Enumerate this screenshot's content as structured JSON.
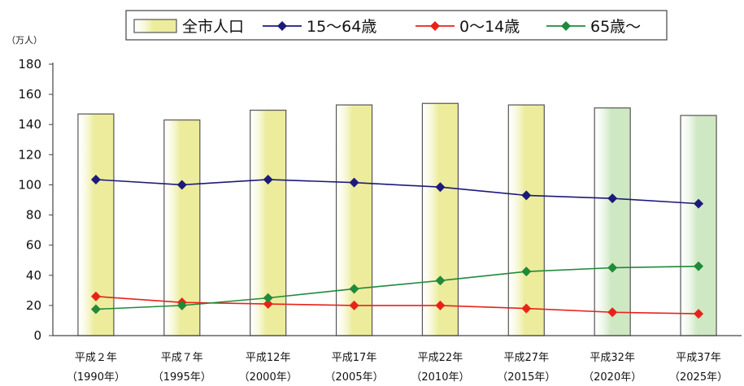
{
  "colors": {
    "bar_fill": "#ecec9c",
    "bar_fill_projected": "#cfe8c4",
    "bar_stroke": "#555555",
    "series_15_64": "#1c1a7a",
    "series_0_14": "#e8221b",
    "series_65_plus": "#1f8a3a",
    "axis": "#444444",
    "grid": "#c8c8c8"
  },
  "chart_data": {
    "type": "bar",
    "unit_label": "（万人）",
    "ylim": [
      0,
      180
    ],
    "yticks": [
      0,
      20,
      40,
      60,
      80,
      100,
      120,
      140,
      160,
      180
    ],
    "grid": false,
    "legend_position": "top",
    "categories": [
      {
        "line1": "平成２年",
        "line2": "（1990年）"
      },
      {
        "line1": "平成７年",
        "line2": "（1995年）"
      },
      {
        "line1": "平成12年",
        "line2": "（2000年）"
      },
      {
        "line1": "平成17年",
        "line2": "（2005年）"
      },
      {
        "line1": "平成22年",
        "line2": "（2010年）"
      },
      {
        "line1": "平成27年",
        "line2": "（2015年）"
      },
      {
        "line1": "平成32年",
        "line2": "（2020年）"
      },
      {
        "line1": "平成37年",
        "line2": "（2025年）"
      }
    ],
    "projected_from_index": 6,
    "series": [
      {
        "name": "全市人口",
        "type": "bar",
        "values": [
          147,
          143,
          149.5,
          153,
          154,
          153,
          151,
          146
        ]
      },
      {
        "name": "15～64歳",
        "type": "line",
        "values": [
          103.5,
          100,
          103.5,
          101.5,
          98.5,
          93,
          91,
          87.5
        ]
      },
      {
        "name": "0～14歳",
        "type": "line",
        "values": [
          26,
          22,
          21,
          20,
          20,
          18,
          15.5,
          14.5
        ]
      },
      {
        "name": "65歳～",
        "type": "line",
        "values": [
          17.5,
          20,
          25,
          31,
          36.5,
          42.5,
          45,
          46
        ]
      }
    ]
  }
}
